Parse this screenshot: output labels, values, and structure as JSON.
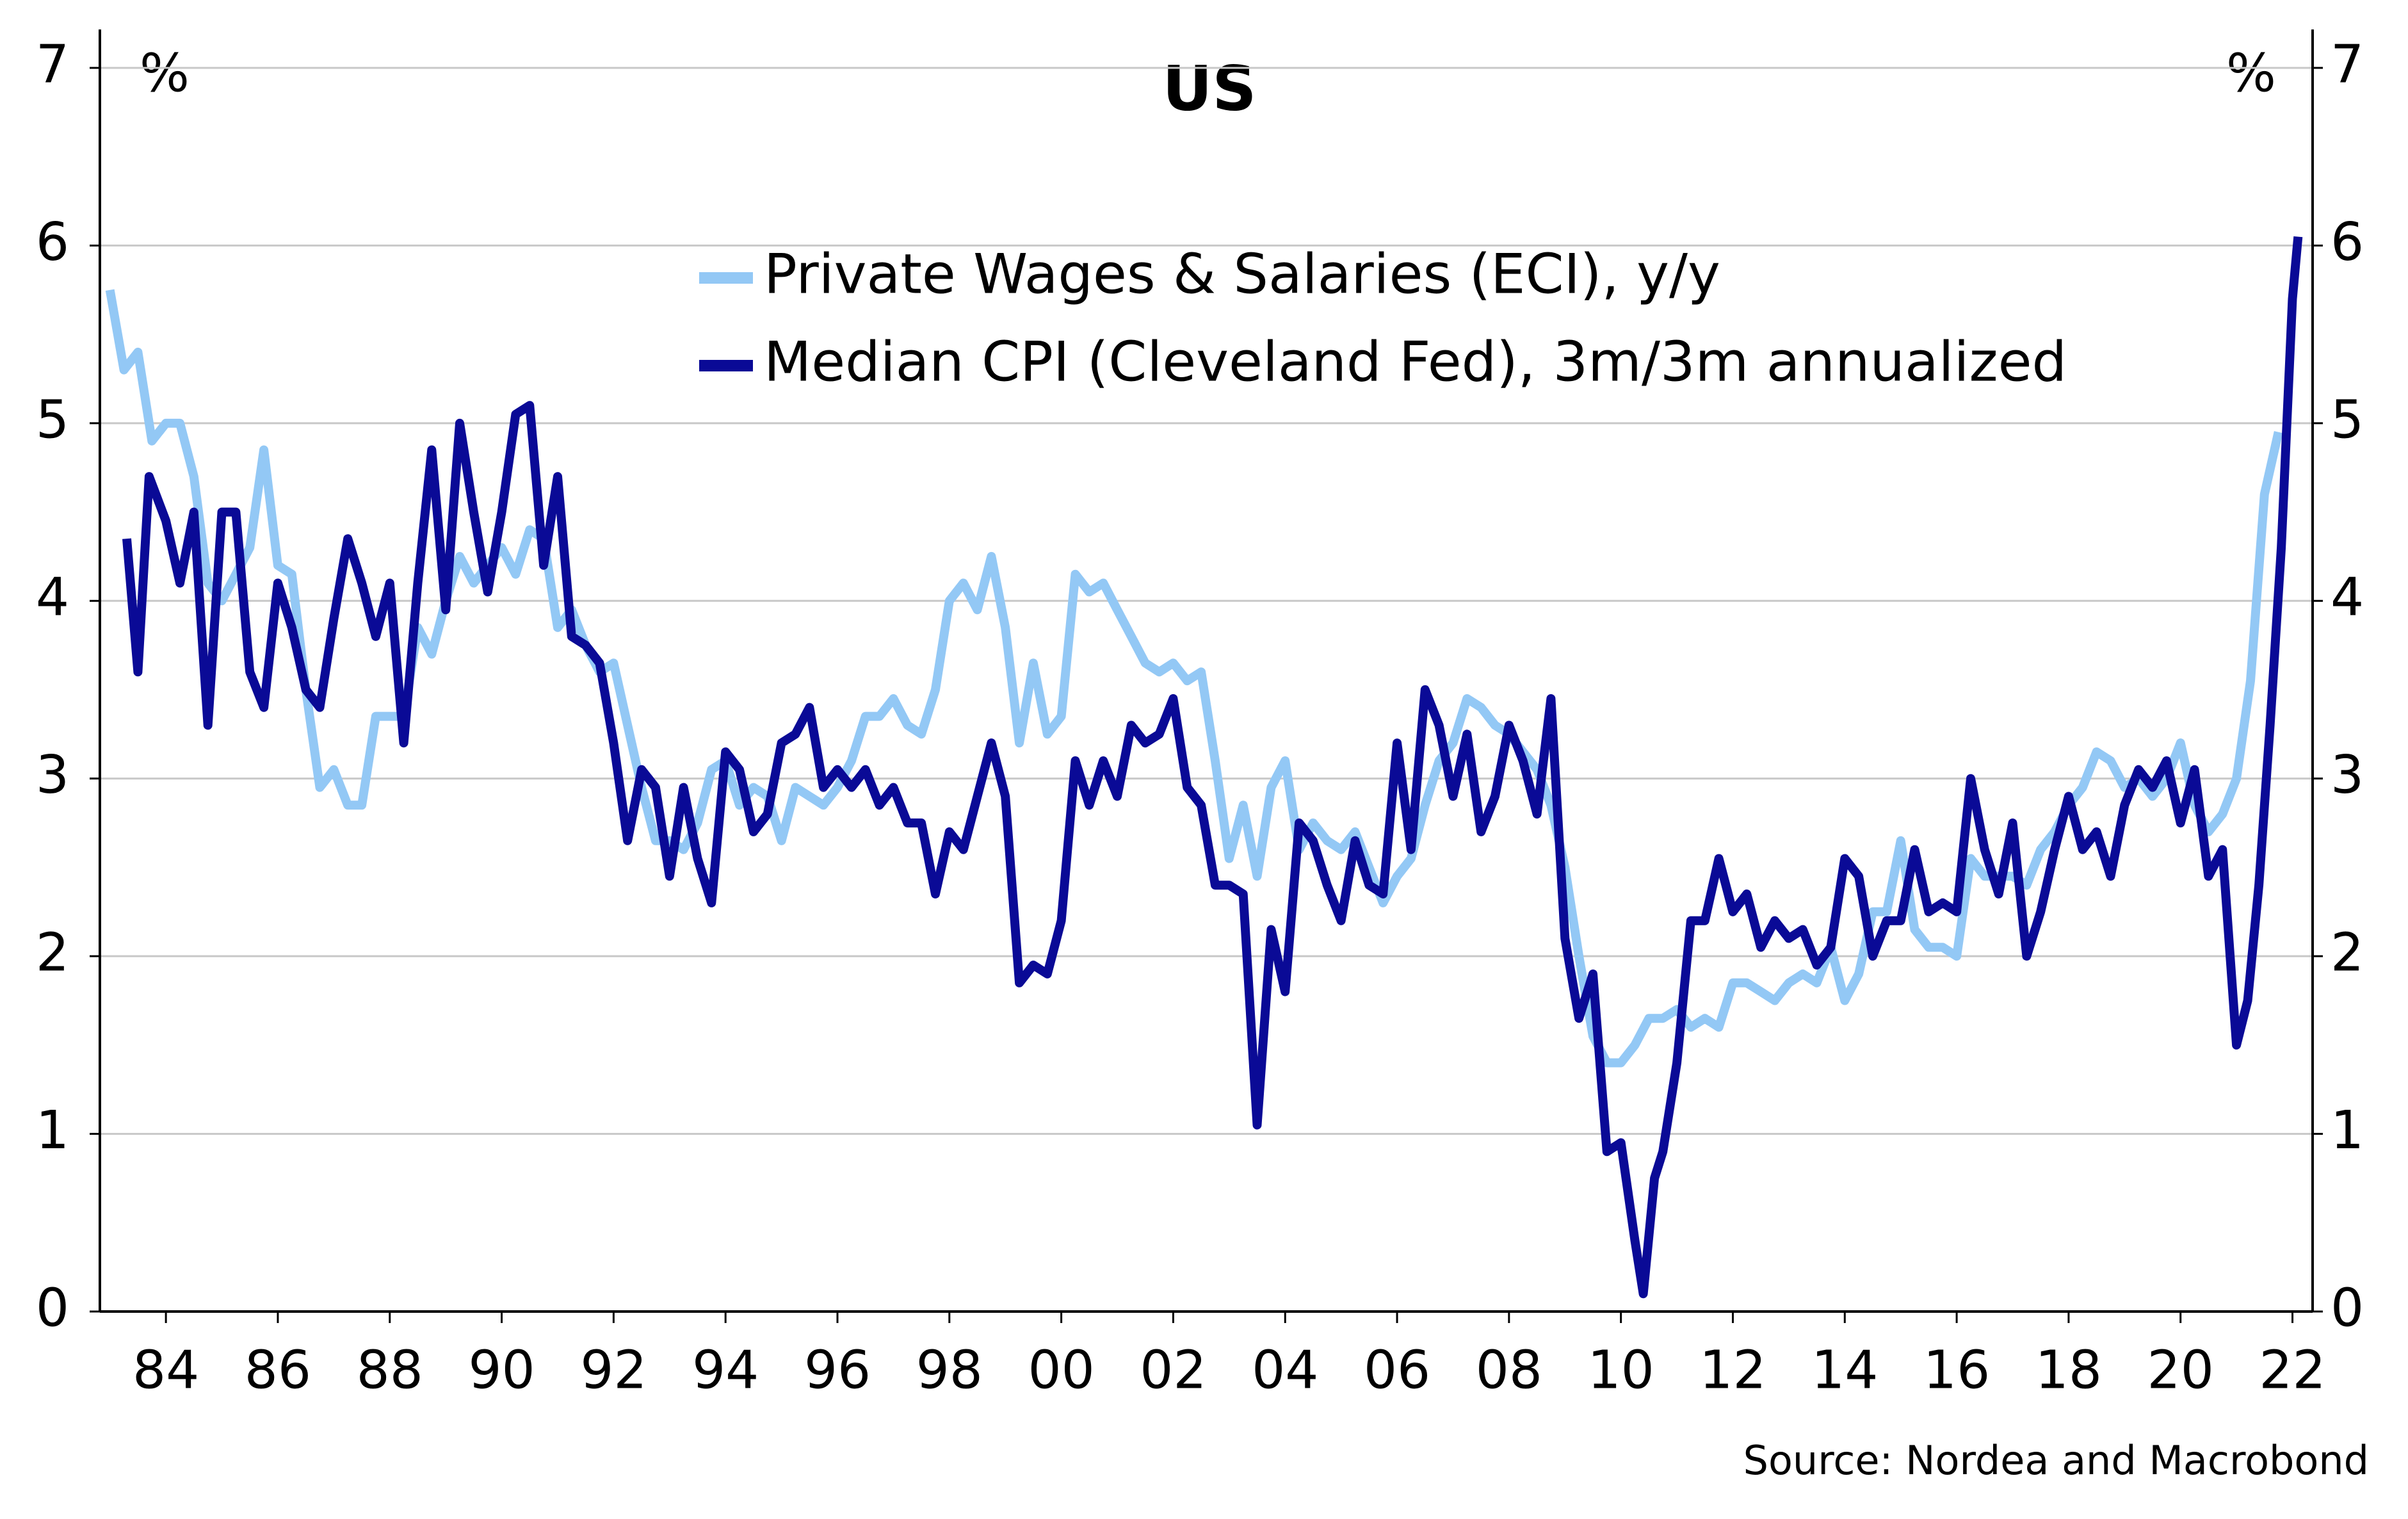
{
  "chart_data": {
    "type": "line",
    "title": "US",
    "y_unit": "%",
    "y2_unit": "%",
    "source": "Source: Nordea and Macrobond",
    "xlim": [
      1982.82,
      2022.36
    ],
    "xticks": [
      {
        "value": 1984,
        "label": "84"
      },
      {
        "value": 1986,
        "label": "86"
      },
      {
        "value": 1988,
        "label": "88"
      },
      {
        "value": 1990,
        "label": "90"
      },
      {
        "value": 1992,
        "label": "92"
      },
      {
        "value": 1994,
        "label": "94"
      },
      {
        "value": 1996,
        "label": "96"
      },
      {
        "value": 1998,
        "label": "98"
      },
      {
        "value": 2000,
        "label": "00"
      },
      {
        "value": 2002,
        "label": "02"
      },
      {
        "value": 2004,
        "label": "04"
      },
      {
        "value": 2006,
        "label": "06"
      },
      {
        "value": 2008,
        "label": "08"
      },
      {
        "value": 2010,
        "label": "10"
      },
      {
        "value": 2012,
        "label": "12"
      },
      {
        "value": 2014,
        "label": "14"
      },
      {
        "value": 2016,
        "label": "16"
      },
      {
        "value": 2018,
        "label": "18"
      },
      {
        "value": 2020,
        "label": "20"
      },
      {
        "value": 2022,
        "label": "22"
      }
    ],
    "ylim": [
      0,
      7
    ],
    "yticks": [
      0,
      1,
      2,
      3,
      4,
      5,
      6,
      7
    ],
    "y2lim": [
      0,
      7
    ],
    "y2ticks": [
      0,
      1,
      2,
      3,
      4,
      5,
      6,
      7
    ],
    "grid": true,
    "legend": "top-center",
    "series": [
      {
        "name": "Private Wages & Salaries (ECI), y/y",
        "color": "#93c8f5",
        "x": [
          1983.0,
          1983.25,
          1983.5,
          1983.75,
          1984.0,
          1984.25,
          1984.5,
          1984.75,
          1985.0,
          1985.25,
          1985.5,
          1985.75,
          1986.0,
          1986.25,
          1986.5,
          1986.75,
          1987.0,
          1987.25,
          1987.5,
          1987.75,
          1988.0,
          1988.25,
          1988.5,
          1988.75,
          1989.0,
          1989.25,
          1989.5,
          1989.75,
          1990.0,
          1990.25,
          1990.5,
          1990.75,
          1991.0,
          1991.25,
          1991.5,
          1991.75,
          1992.0,
          1992.25,
          1992.5,
          1992.75,
          1993.0,
          1993.25,
          1993.5,
          1993.75,
          1994.0,
          1994.25,
          1994.5,
          1994.75,
          1995.0,
          1995.25,
          1995.5,
          1995.75,
          1996.0,
          1996.25,
          1996.5,
          1996.75,
          1997.0,
          1997.25,
          1997.5,
          1997.75,
          1998.0,
          1998.25,
          1998.5,
          1998.75,
          1999.0,
          1999.25,
          1999.5,
          1999.75,
          2000.0,
          2000.25,
          2000.5,
          2000.75,
          2001.0,
          2001.25,
          2001.5,
          2001.75,
          2002.0,
          2002.25,
          2002.5,
          2002.75,
          2003.0,
          2003.25,
          2003.5,
          2003.75,
          2004.0,
          2004.25,
          2004.5,
          2004.75,
          2005.0,
          2005.25,
          2005.5,
          2005.75,
          2006.0,
          2006.25,
          2006.5,
          2006.75,
          2007.0,
          2007.25,
          2007.5,
          2007.75,
          2008.0,
          2008.25,
          2008.5,
          2008.75,
          2009.0,
          2009.25,
          2009.5,
          2009.75,
          2010.0,
          2010.25,
          2010.5,
          2010.75,
          2011.0,
          2011.25,
          2011.5,
          2011.75,
          2012.0,
          2012.25,
          2012.5,
          2012.75,
          2013.0,
          2013.25,
          2013.5,
          2013.75,
          2014.0,
          2014.25,
          2014.5,
          2014.75,
          2015.0,
          2015.25,
          2015.5,
          2015.75,
          2016.0,
          2016.25,
          2016.5,
          2016.75,
          2017.0,
          2017.25,
          2017.5,
          2017.75,
          2018.0,
          2018.25,
          2018.5,
          2018.75,
          2019.0,
          2019.25,
          2019.5,
          2019.75,
          2020.0,
          2020.25,
          2020.5,
          2020.75,
          2021.0,
          2021.25,
          2021.5,
          2021.75
        ],
        "values": [
          5.75,
          5.3,
          5.4,
          4.9,
          5.0,
          5.0,
          4.7,
          4.1,
          4.0,
          4.15,
          4.3,
          4.85,
          4.2,
          4.15,
          3.5,
          2.95,
          3.05,
          2.85,
          2.85,
          3.35,
          3.35,
          3.35,
          3.85,
          3.7,
          4.0,
          4.25,
          4.1,
          4.2,
          4.3,
          4.15,
          4.4,
          4.35,
          3.85,
          3.95,
          3.75,
          3.6,
          3.65,
          3.3,
          2.95,
          2.65,
          2.65,
          2.6,
          2.75,
          3.05,
          3.1,
          2.85,
          2.95,
          2.9,
          2.65,
          2.95,
          2.9,
          2.85,
          2.95,
          3.1,
          3.35,
          3.35,
          3.45,
          3.3,
          3.25,
          3.5,
          4.0,
          4.1,
          3.95,
          4.25,
          3.85,
          3.2,
          3.65,
          3.25,
          3.35,
          4.15,
          4.05,
          4.1,
          3.95,
          3.8,
          3.65,
          3.6,
          3.65,
          3.55,
          3.6,
          3.1,
          2.55,
          2.85,
          2.45,
          2.95,
          3.1,
          2.6,
          2.75,
          2.65,
          2.6,
          2.7,
          2.5,
          2.3,
          2.45,
          2.55,
          2.85,
          3.1,
          3.2,
          3.45,
          3.4,
          3.3,
          3.25,
          3.15,
          3.05,
          2.85,
          2.5,
          2.0,
          1.55,
          1.4,
          1.4,
          1.5,
          1.65,
          1.65,
          1.7,
          1.6,
          1.65,
          1.6,
          1.85,
          1.85,
          1.8,
          1.75,
          1.85,
          1.9,
          1.85,
          2.05,
          1.75,
          1.9,
          2.25,
          2.25,
          2.65,
          2.15,
          2.05,
          2.05,
          2.0,
          2.55,
          2.45,
          2.45,
          2.45,
          2.4,
          2.6,
          2.7,
          2.85,
          2.95,
          3.15,
          3.1,
          2.95,
          3.0,
          2.9,
          3.0,
          3.2,
          2.85,
          2.7,
          2.8,
          3.0,
          3.55,
          4.6,
          4.95
        ]
      },
      {
        "name": "Median CPI (Cleveland Fed), 3m/3m annualized",
        "color": "#0a0a96",
        "x": [
          1983.3,
          1983.5,
          1983.7,
          1984.0,
          1984.25,
          1984.5,
          1984.75,
          1985.0,
          1985.25,
          1985.5,
          1985.75,
          1986.0,
          1986.25,
          1986.5,
          1986.75,
          1987.0,
          1987.25,
          1987.5,
          1987.75,
          1988.0,
          1988.25,
          1988.5,
          1988.75,
          1989.0,
          1989.25,
          1989.5,
          1989.75,
          1990.0,
          1990.25,
          1990.5,
          1990.75,
          1991.0,
          1991.25,
          1991.5,
          1991.75,
          1992.0,
          1992.25,
          1992.5,
          1992.75,
          1993.0,
          1993.25,
          1993.5,
          1993.75,
          1994.0,
          1994.25,
          1994.5,
          1994.75,
          1995.0,
          1995.25,
          1995.5,
          1995.75,
          1996.0,
          1996.25,
          1996.5,
          1996.75,
          1997.0,
          1997.25,
          1997.5,
          1997.75,
          1998.0,
          1998.25,
          1998.5,
          1998.75,
          1999.0,
          1999.25,
          1999.5,
          1999.75,
          2000.0,
          2000.25,
          2000.5,
          2000.75,
          2001.0,
          2001.25,
          2001.5,
          2001.75,
          2002.0,
          2002.25,
          2002.5,
          2002.75,
          2003.0,
          2003.25,
          2003.5,
          2003.75,
          2004.0,
          2004.25,
          2004.5,
          2004.75,
          2005.0,
          2005.25,
          2005.5,
          2005.75,
          2006.0,
          2006.25,
          2006.5,
          2006.75,
          2007.0,
          2007.25,
          2007.5,
          2007.75,
          2008.0,
          2008.25,
          2008.5,
          2008.75,
          2009.0,
          2009.25,
          2009.5,
          2009.75,
          2010.0,
          2010.25,
          2010.4,
          2010.6,
          2010.75,
          2011.0,
          2011.25,
          2011.5,
          2011.75,
          2012.0,
          2012.25,
          2012.5,
          2012.75,
          2013.0,
          2013.25,
          2013.5,
          2013.75,
          2014.0,
          2014.25,
          2014.5,
          2014.75,
          2015.0,
          2015.25,
          2015.5,
          2015.75,
          2016.0,
          2016.25,
          2016.5,
          2016.75,
          2017.0,
          2017.25,
          2017.5,
          2017.75,
          2018.0,
          2018.25,
          2018.5,
          2018.75,
          2019.0,
          2019.25,
          2019.5,
          2019.75,
          2020.0,
          2020.25,
          2020.5,
          2020.75,
          2021.0,
          2021.2,
          2021.4,
          2021.6,
          2021.8,
          2022.0,
          2022.1
        ],
        "values": [
          4.35,
          3.6,
          4.7,
          4.45,
          4.1,
          4.5,
          3.3,
          4.5,
          4.5,
          3.6,
          3.4,
          4.1,
          3.85,
          3.5,
          3.4,
          3.9,
          4.35,
          4.1,
          3.8,
          4.1,
          3.2,
          4.1,
          4.85,
          3.95,
          5.0,
          4.5,
          4.05,
          4.5,
          5.05,
          5.1,
          4.2,
          4.7,
          3.8,
          3.75,
          3.65,
          3.2,
          2.65,
          3.05,
          2.95,
          2.45,
          2.95,
          2.55,
          2.3,
          3.15,
          3.05,
          2.7,
          2.8,
          3.2,
          3.25,
          3.4,
          2.95,
          3.05,
          2.95,
          3.05,
          2.85,
          2.95,
          2.75,
          2.75,
          2.35,
          2.7,
          2.6,
          2.9,
          3.2,
          2.9,
          1.85,
          1.95,
          1.9,
          2.2,
          3.1,
          2.85,
          3.1,
          2.9,
          3.3,
          3.2,
          3.25,
          3.45,
          2.95,
          2.85,
          2.4,
          2.4,
          2.35,
          1.05,
          2.15,
          1.8,
          2.75,
          2.65,
          2.4,
          2.2,
          2.65,
          2.4,
          2.35,
          3.2,
          2.6,
          3.5,
          3.3,
          2.9,
          3.25,
          2.7,
          2.9,
          3.3,
          3.1,
          2.8,
          3.45,
          2.1,
          1.65,
          1.9,
          0.9,
          0.95,
          0.4,
          0.1,
          0.75,
          0.9,
          1.4,
          2.2,
          2.2,
          2.55,
          2.25,
          2.35,
          2.05,
          2.2,
          2.1,
          2.15,
          1.95,
          2.05,
          2.55,
          2.45,
          2.0,
          2.2,
          2.2,
          2.6,
          2.25,
          2.3,
          2.25,
          3.0,
          2.6,
          2.35,
          2.75,
          2.0,
          2.25,
          2.6,
          2.9,
          2.6,
          2.7,
          2.45,
          2.85,
          3.05,
          2.95,
          3.1,
          2.75,
          3.05,
          2.45,
          2.6,
          1.5,
          1.75,
          2.4,
          3.3,
          4.3,
          5.7,
          6.05
        ]
      }
    ]
  }
}
